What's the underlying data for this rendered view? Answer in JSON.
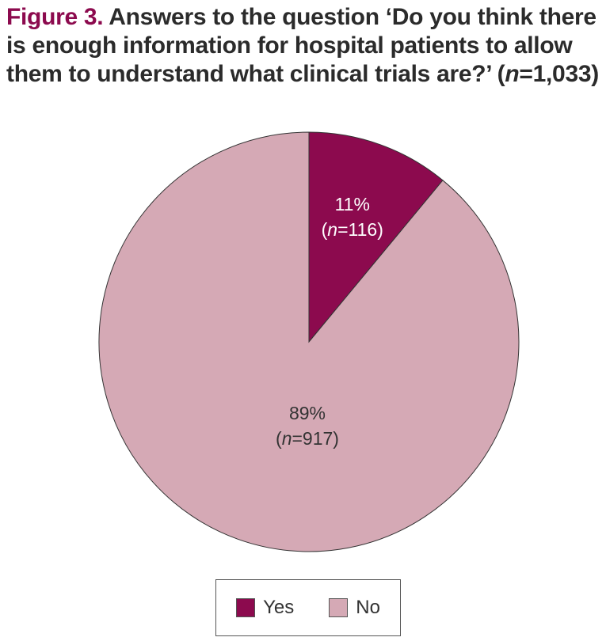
{
  "title": {
    "figure_label": "Figure 3.",
    "text_before_n": "Answers to the question ‘Do you think there is enough information for hospital patients to allow them to understand what clinical trials are?’ (",
    "n_italic": "n",
    "text_after_n": "=1,033)"
  },
  "chart_data": {
    "type": "pie",
    "start_angle_deg": 0,
    "direction": "clockwise",
    "slices": [
      {
        "name": "Yes",
        "percent": 11,
        "count": 116,
        "percent_label": "11%",
        "n_label": "116",
        "color": "#8c0a4e",
        "label_color": "#ffffff"
      },
      {
        "name": "No",
        "percent": 89,
        "count": 917,
        "percent_label": "89%",
        "n_label": "917",
        "color": "#d5a9b5",
        "label_color": "#333333"
      }
    ],
    "legend": {
      "placement": "bottom",
      "items": [
        {
          "label": "Yes",
          "color": "#8c0a4e"
        },
        {
          "label": "No",
          "color": "#d5a9b5"
        }
      ]
    }
  }
}
